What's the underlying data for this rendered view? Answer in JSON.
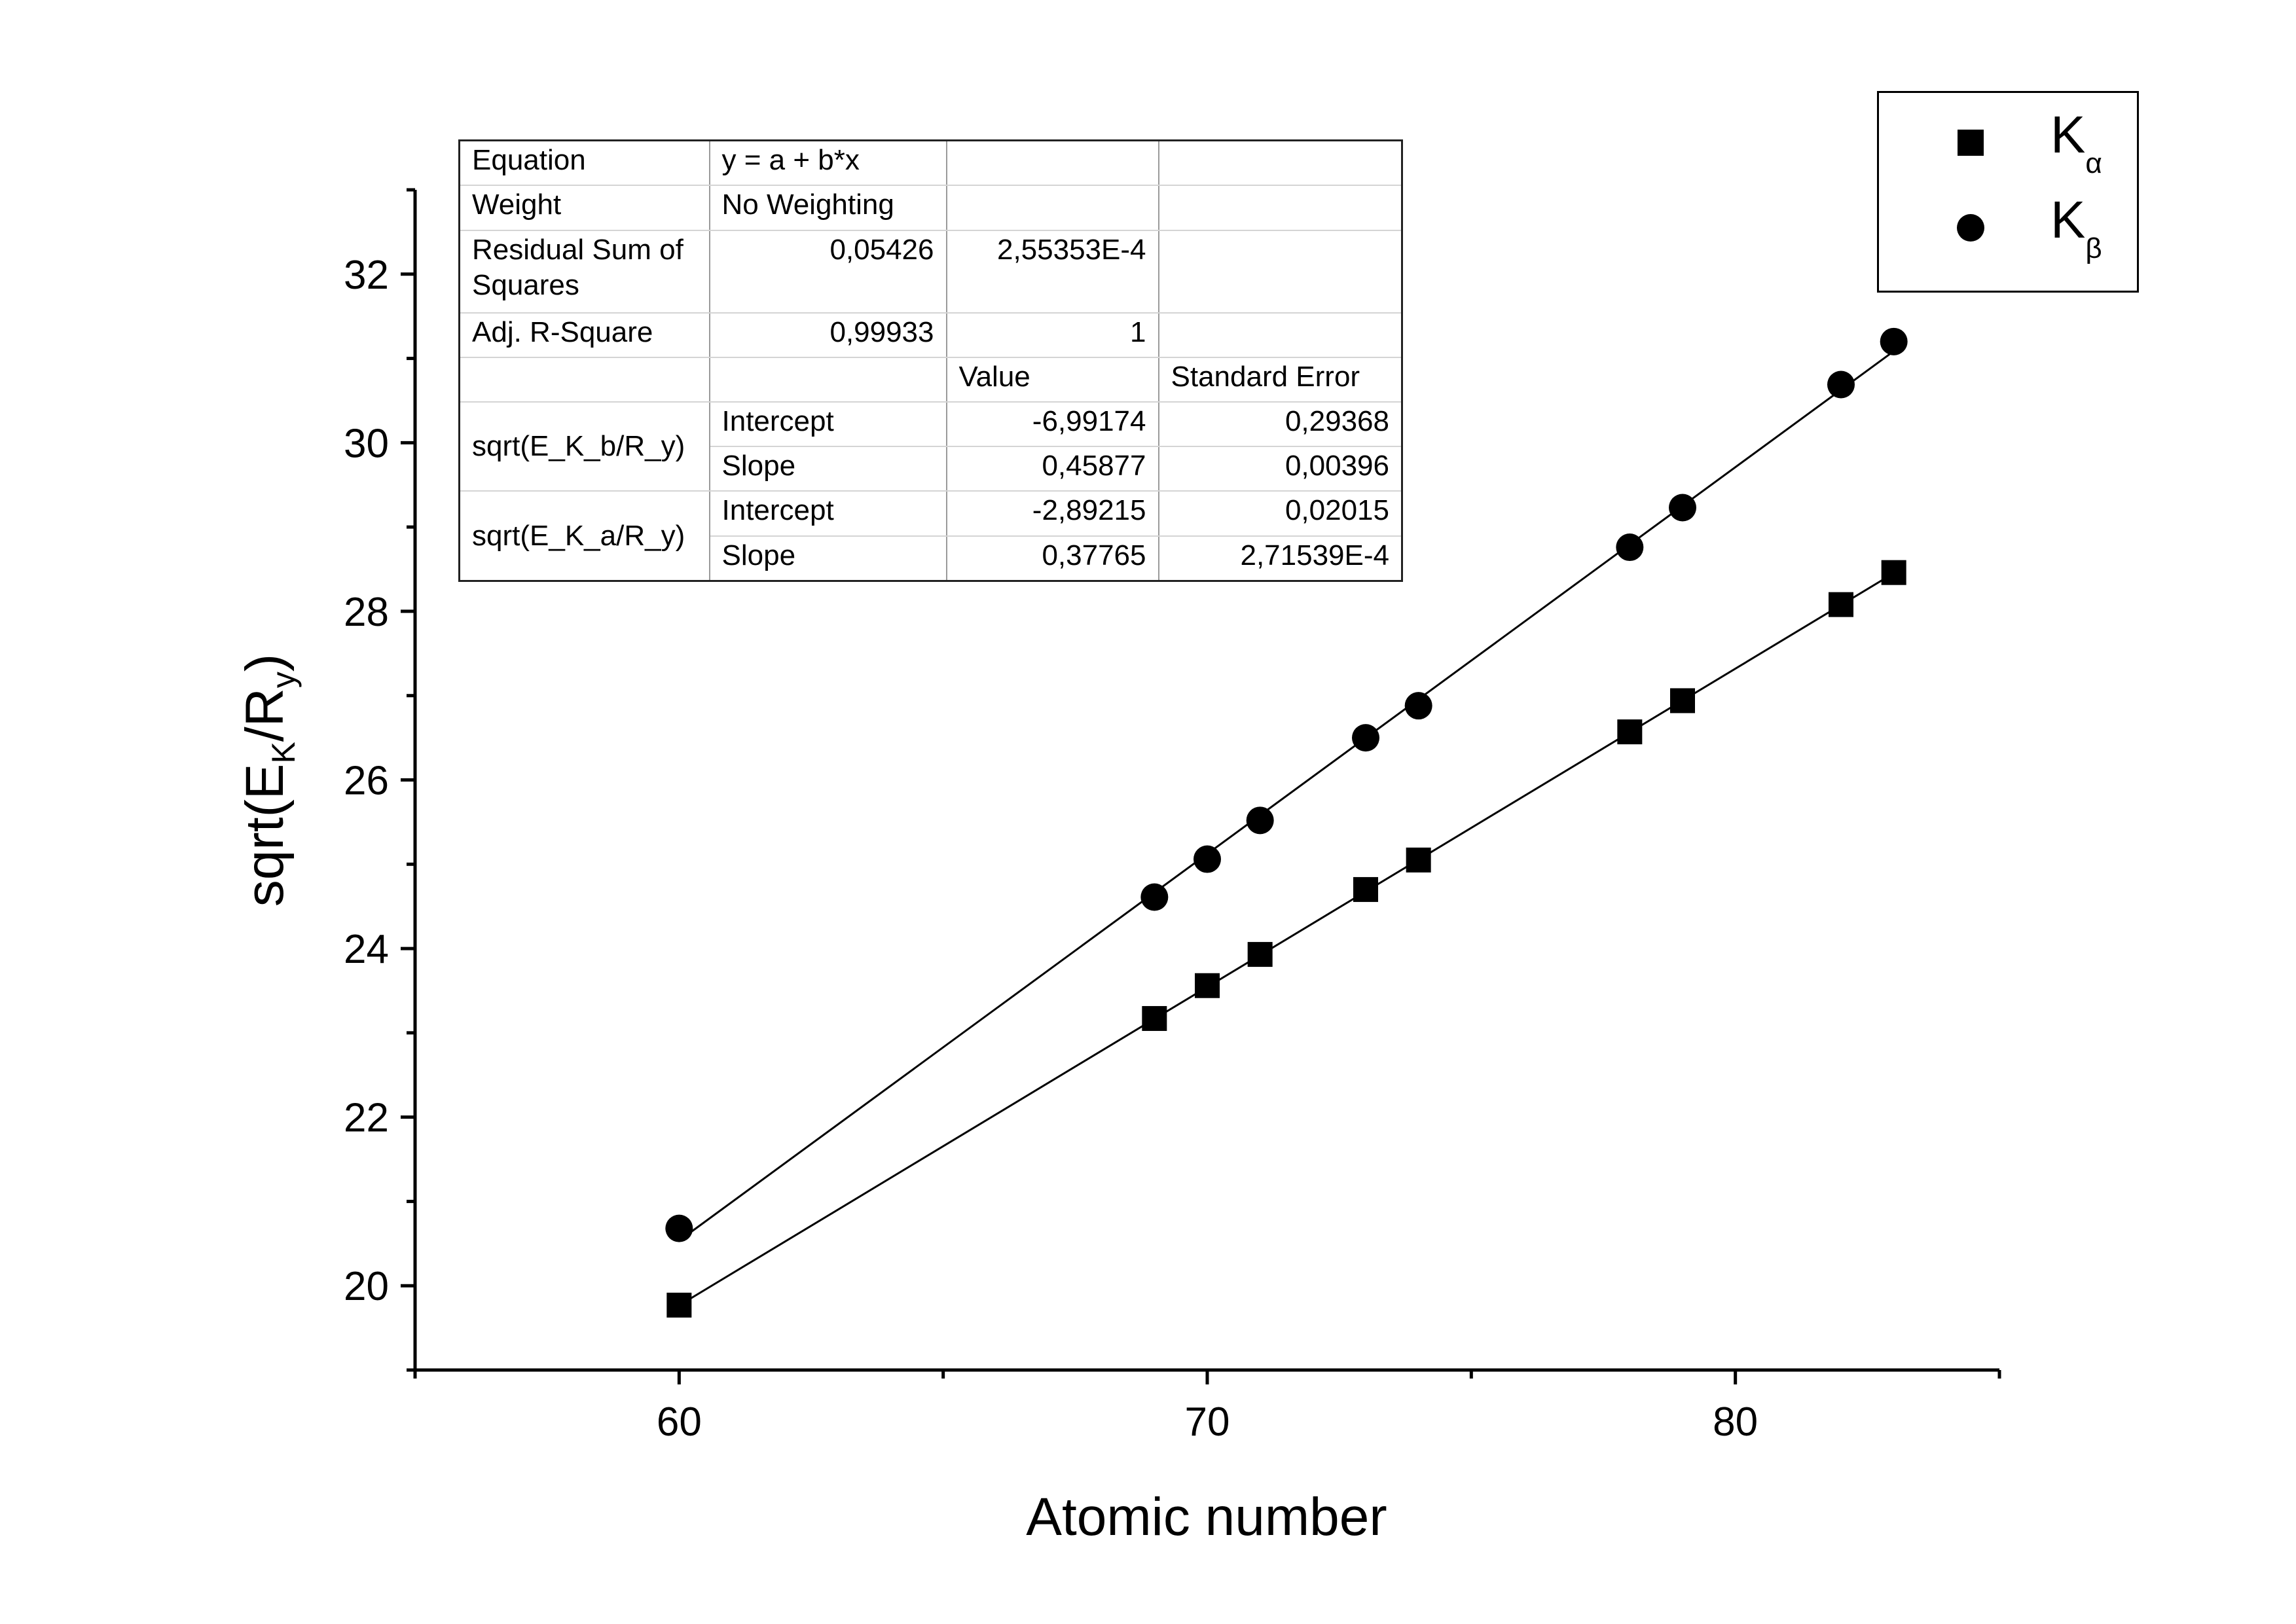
{
  "chart_data": {
    "type": "scatter",
    "xlabel": "Atomic number",
    "ylabel": {
      "main": "sqrt(E",
      "sub1": "K",
      "mid": "/R",
      "sub2": "y",
      "end": ")"
    },
    "xlim": [
      55,
      85
    ],
    "ylim": [
      19,
      33
    ],
    "xticks": [
      60,
      70,
      80
    ],
    "yticks": [
      20,
      22,
      24,
      26,
      28,
      30,
      32
    ],
    "xminor": [
      55,
      65,
      75,
      85
    ],
    "yminor": [
      19,
      21,
      23,
      25,
      27,
      29,
      31,
      33
    ],
    "series": [
      {
        "name": "K_alpha",
        "legend_main": "K",
        "legend_sub": "α",
        "marker": "square",
        "x": [
          60,
          69,
          70,
          71,
          73,
          74,
          78,
          79,
          82,
          83
        ],
        "y": [
          19.77,
          23.17,
          23.56,
          23.93,
          24.7,
          25.05,
          26.57,
          26.94,
          28.08,
          28.46
        ],
        "fit": {
          "intercept": -2.89215,
          "slope": 0.37765
        }
      },
      {
        "name": "K_beta",
        "legend_main": "K",
        "legend_sub": "β",
        "marker": "circle",
        "x": [
          60,
          69,
          70,
          71,
          73,
          74,
          78,
          79,
          82,
          83
        ],
        "y": [
          20.68,
          24.61,
          25.06,
          25.52,
          26.5,
          26.88,
          28.76,
          29.23,
          30.69,
          31.2
        ],
        "fit": {
          "intercept": -6.99174,
          "slope": 0.45877
        }
      }
    ],
    "legend_position": "top-right",
    "grid": false
  },
  "stats_table": {
    "equation_label": "Equation",
    "equation_value": "y = a + b*x",
    "weight_label": "Weight",
    "weight_value": "No Weighting",
    "rss_label": "Residual Sum of Squares",
    "rss_b": "0,05426",
    "rss_a": "2,55353E-4",
    "adjr_label": "Adj. R-Square",
    "adjr_b": "0,99933",
    "adjr_a": "1",
    "value_header": "Value",
    "se_header": "Standard Error",
    "b_name": "sqrt(E_K_b/R_y)",
    "a_name": "sqrt(E_K_a/R_y)",
    "intercept_label": "Intercept",
    "slope_label": "Slope",
    "b_intercept": "-6,99174",
    "b_intercept_se": "0,29368",
    "b_slope": "0,45877",
    "b_slope_se": "0,00396",
    "a_intercept": "-2,89215",
    "a_intercept_se": "0,02015",
    "a_slope": "0,37765",
    "a_slope_se": "2,71539E-4"
  }
}
